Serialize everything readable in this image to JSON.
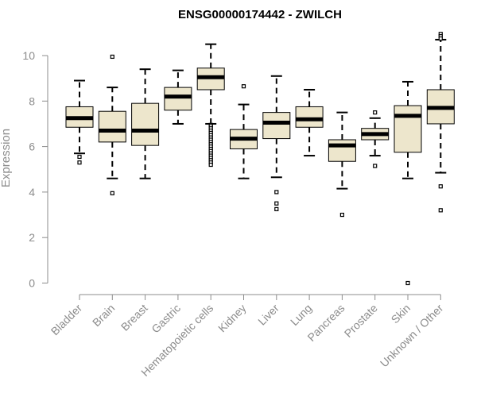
{
  "chart_data": {
    "type": "boxplot",
    "title": "ENSG00000174442 - ZWILCH",
    "xlabel": "",
    "ylabel": "Expression",
    "ylim": [
      0,
      11
    ],
    "yticks": [
      0,
      2,
      4,
      6,
      8,
      10
    ],
    "grid": false,
    "legend": "none",
    "colors": {
      "box_fill": "#ede6cc",
      "median": "#000000",
      "axis": "#8c8c8c",
      "text": "#8c8c8c"
    },
    "categories": [
      "Bladder",
      "Brain",
      "Breast",
      "Gastric",
      "Hematopoietic cells",
      "Kidney",
      "Liver",
      "Lung",
      "Pancreas",
      "Prostate",
      "Skin",
      "Unknown / Other"
    ],
    "boxes": [
      {
        "category": "Bladder",
        "whisker_low": 5.7,
        "q1": 6.85,
        "median": 7.25,
        "q3": 7.75,
        "whisker_high": 8.9,
        "outliers": [
          5.55,
          5.3
        ]
      },
      {
        "category": "Brain",
        "whisker_low": 4.6,
        "q1": 6.2,
        "median": 6.7,
        "q3": 7.55,
        "whisker_high": 8.6,
        "outliers": [
          9.95,
          3.95
        ]
      },
      {
        "category": "Breast",
        "whisker_low": 4.6,
        "q1": 6.05,
        "median": 6.7,
        "q3": 7.9,
        "whisker_high": 9.4,
        "outliers": []
      },
      {
        "category": "Gastric",
        "whisker_low": 7.0,
        "q1": 7.6,
        "median": 8.2,
        "q3": 8.6,
        "whisker_high": 9.35,
        "outliers": []
      },
      {
        "category": "Hematopoietic cells",
        "whisker_low": 7.0,
        "q1": 8.5,
        "median": 9.05,
        "q3": 9.45,
        "whisker_high": 10.5,
        "outliers": [
          6.95,
          6.9,
          6.8,
          6.7,
          6.6,
          6.5,
          6.4,
          6.3,
          6.2,
          6.1,
          6.0,
          5.9,
          5.8,
          5.7,
          5.6,
          5.5,
          5.4,
          5.3,
          5.2
        ]
      },
      {
        "category": "Kidney",
        "whisker_low": 4.6,
        "q1": 5.9,
        "median": 6.35,
        "q3": 6.75,
        "whisker_high": 7.85,
        "outliers": [
          8.65
        ]
      },
      {
        "category": "Liver",
        "whisker_low": 4.65,
        "q1": 6.35,
        "median": 7.05,
        "q3": 7.5,
        "whisker_high": 9.1,
        "outliers": [
          4.0,
          3.5,
          3.25
        ]
      },
      {
        "category": "Lung",
        "whisker_low": 5.6,
        "q1": 6.85,
        "median": 7.2,
        "q3": 7.75,
        "whisker_high": 8.5,
        "outliers": []
      },
      {
        "category": "Pancreas",
        "whisker_low": 4.15,
        "q1": 5.35,
        "median": 6.05,
        "q3": 6.3,
        "whisker_high": 7.5,
        "outliers": [
          3.0
        ]
      },
      {
        "category": "Prostate",
        "whisker_low": 5.6,
        "q1": 6.3,
        "median": 6.55,
        "q3": 6.8,
        "whisker_high": 7.25,
        "outliers": [
          7.5,
          5.15
        ]
      },
      {
        "category": "Skin",
        "whisker_low": 4.6,
        "q1": 5.75,
        "median": 7.35,
        "q3": 7.8,
        "whisker_high": 8.85,
        "outliers": [
          0.0
        ]
      },
      {
        "category": "Unknown / Other",
        "whisker_low": 4.85,
        "q1": 7.0,
        "median": 7.7,
        "q3": 8.5,
        "whisker_high": 10.7,
        "outliers": [
          10.95,
          10.85,
          10.75,
          4.25,
          3.2
        ]
      }
    ]
  }
}
